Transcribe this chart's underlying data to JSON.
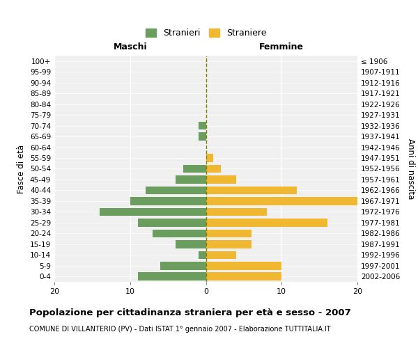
{
  "age_groups": [
    "100+",
    "95-99",
    "90-94",
    "85-89",
    "80-84",
    "75-79",
    "70-74",
    "65-69",
    "60-64",
    "55-59",
    "50-54",
    "45-49",
    "40-44",
    "35-39",
    "30-34",
    "25-29",
    "20-24",
    "15-19",
    "10-14",
    "5-9",
    "0-4"
  ],
  "birth_years": [
    "≤ 1906",
    "1907-1911",
    "1912-1916",
    "1917-1921",
    "1922-1926",
    "1927-1931",
    "1932-1936",
    "1937-1941",
    "1942-1946",
    "1947-1951",
    "1952-1956",
    "1957-1961",
    "1962-1966",
    "1967-1971",
    "1972-1976",
    "1977-1981",
    "1982-1986",
    "1987-1991",
    "1992-1996",
    "1997-2001",
    "2002-2006"
  ],
  "maschi": [
    0,
    0,
    0,
    0,
    0,
    0,
    1,
    1,
    0,
    0,
    3,
    4,
    8,
    10,
    14,
    9,
    7,
    4,
    1,
    6,
    9
  ],
  "femmine": [
    0,
    0,
    0,
    0,
    0,
    0,
    0,
    0,
    0,
    1,
    2,
    4,
    12,
    20,
    8,
    16,
    6,
    6,
    4,
    10,
    10
  ],
  "color_maschi": "#6b9e5e",
  "color_femmine": "#f0b830",
  "title": "Popolazione per cittadinanza straniera per età e sesso - 2007",
  "subtitle": "COMUNE DI VILLANTERIO (PV) - Dati ISTAT 1° gennaio 2007 - Elaborazione TUTTITALIA.IT",
  "label_maschi": "Maschi",
  "label_femmine": "Femmine",
  "ylabel_left": "Fasce di età",
  "ylabel_right": "Anni di nascita",
  "legend_maschi": "Stranieri",
  "legend_femmine": "Straniere",
  "xlim": 20,
  "background_color": "#ffffff",
  "plot_bg_color": "#f0f0f0"
}
